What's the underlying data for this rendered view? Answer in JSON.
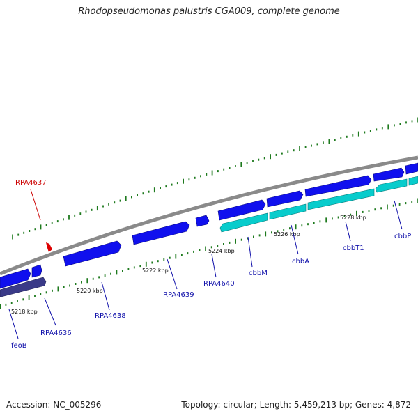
{
  "title": "Rhodopseudomonas palustris CGA009, complete genome",
  "footer": {
    "accession": "Accession: NC_005296",
    "summary": "Topology: circular; Length: 5,459,213 bp; Genes: 4,872"
  },
  "colors": {
    "forward_gene": "#1010ee",
    "reverse_gene": "#08cccc",
    "reverse_gene_alt": "#3a3a88",
    "highlight_gene": "#dd0000",
    "backbone": "#8a8a8a",
    "ticks": "#1e7a1e",
    "label_blue": "#1010aa",
    "label_red": "#cc0000"
  },
  "ticks": [
    {
      "label": "5218 kbp"
    },
    {
      "label": "5220 kbp"
    },
    {
      "label": "5222 kbp"
    },
    {
      "label": "5224 kbp"
    },
    {
      "label": "5226 kbp"
    },
    {
      "label": "5228 kbp"
    }
  ],
  "genes": [
    {
      "name": "feoB",
      "strand": "reverse"
    },
    {
      "name": "RPA4636",
      "strand": "forward"
    },
    {
      "name": "RPA4637",
      "strand": "forward",
      "highlight": true
    },
    {
      "name": "RPA4638",
      "strand": "forward"
    },
    {
      "name": "RPA4639",
      "strand": "forward"
    },
    {
      "name": "RPA4640",
      "strand": "forward"
    },
    {
      "name": "cbbM",
      "strand": "reverse"
    },
    {
      "name": "cbbA",
      "strand": "reverse"
    },
    {
      "name": "cbbT1",
      "strand": "reverse"
    },
    {
      "name": "cbbP",
      "strand": "reverse"
    }
  ]
}
